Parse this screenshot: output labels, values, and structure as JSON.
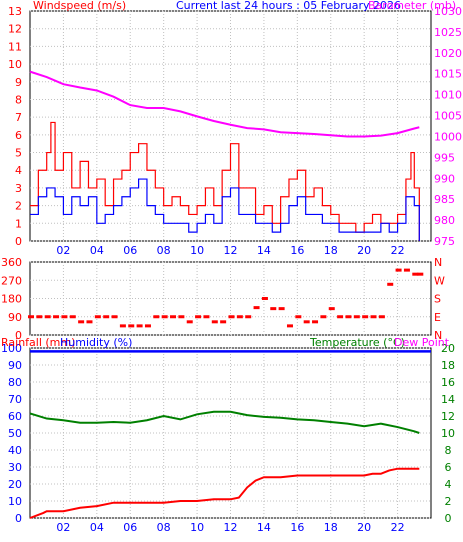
{
  "header": {
    "left_title": "Windspeed (m/s)",
    "center_title": "Current last 24 hours : 05 February 2026",
    "right_title": "Barometer (mb)"
  },
  "colors": {
    "wind_speed": "#ff0000",
    "wind_avg": "#0000ff",
    "barometer": "#ff00ff",
    "direction": "#ff0000",
    "rainfall": "#ff0000",
    "humidity": "#0000ff",
    "temperature": "#008000",
    "axis_left": "#ff0000",
    "axis_right_baro": "#ff00ff",
    "axis_left_bottom": "#0000ff",
    "axis_right_temp": "#008000",
    "grid": "#c0c0c0",
    "tick_text_x": "#0000ff"
  },
  "chart_data": [
    {
      "type": "line",
      "panel": "wind_barometer",
      "title": "Current last 24 hours : 05 February 2026",
      "ylabel": "Windspeed (m/s)",
      "y2label": "Barometer (mb)",
      "ylim": [
        0,
        13
      ],
      "y2lim": [
        975,
        1030
      ],
      "yticks": [
        0,
        1,
        2,
        3,
        4,
        5,
        6,
        7,
        8,
        9,
        10,
        11,
        12,
        13
      ],
      "y2ticks": [
        975,
        980,
        985,
        990,
        995,
        1000,
        1005,
        1010,
        1015,
        1020,
        1025,
        1030
      ],
      "xlim": [
        0,
        24
      ],
      "xticks": [
        "02",
        "04",
        "06",
        "08",
        "10",
        "12",
        "14",
        "16",
        "18",
        "20",
        "22"
      ],
      "xtick_pos": [
        2,
        4,
        6,
        8,
        10,
        12,
        14,
        16,
        18,
        20,
        22
      ],
      "grid": true,
      "series": [
        {
          "name": "Gust",
          "axis": "left",
          "x": [
            0,
            0.5,
            1,
            1.25,
            1.5,
            2,
            2.5,
            3,
            3.5,
            4,
            4.5,
            5,
            5.5,
            6,
            6.5,
            7,
            7.5,
            8,
            8.5,
            9,
            9.5,
            10,
            10.5,
            11,
            11.5,
            12,
            12.5,
            13,
            13.5,
            14,
            14.5,
            15,
            15.5,
            16,
            16.5,
            17,
            17.5,
            18,
            18.5,
            19,
            19.5,
            20,
            20.5,
            21,
            21.5,
            22,
            22.5,
            22.8,
            23,
            23.3
          ],
          "values": [
            2,
            4,
            5,
            6.7,
            4,
            5,
            3,
            4.5,
            3,
            3.5,
            2,
            3.5,
            4,
            5,
            5.5,
            4,
            3,
            2,
            2.5,
            2,
            1.5,
            2,
            3,
            2,
            4,
            5.5,
            3,
            3,
            1.5,
            2,
            1,
            2.5,
            3.5,
            4,
            2.5,
            3,
            2,
            1.5,
            1,
            1,
            0.5,
            1,
            1.5,
            1,
            1,
            1.5,
            3.5,
            5,
            3,
            0
          ]
        },
        {
          "name": "Average",
          "axis": "left",
          "x": [
            0,
            0.5,
            1,
            1.5,
            2,
            2.5,
            3,
            3.5,
            4,
            4.5,
            5,
            5.5,
            6,
            6.5,
            7,
            7.5,
            8,
            8.5,
            9,
            9.5,
            10,
            10.5,
            11,
            11.5,
            12,
            12.5,
            13,
            13.5,
            14,
            14.5,
            15,
            15.5,
            16,
            16.5,
            17,
            17.5,
            18,
            18.5,
            19,
            19.5,
            20,
            20.5,
            21,
            21.5,
            22,
            22.5,
            23,
            23.3
          ],
          "values": [
            1.5,
            2.5,
            3,
            2.5,
            1.5,
            2.5,
            2,
            2.5,
            1,
            1.5,
            2,
            2.5,
            3,
            3.5,
            2,
            1.5,
            1,
            1,
            1,
            0.5,
            1,
            1.5,
            1,
            2.5,
            3,
            1.5,
            1.5,
            1,
            1,
            0.5,
            1,
            2,
            2.5,
            1.5,
            1.5,
            1,
            1,
            0.5,
            0.5,
            0.5,
            0.5,
            0.5,
            1,
            0.5,
            1,
            2.5,
            2,
            0
          ]
        },
        {
          "name": "Barometer",
          "axis": "right",
          "x": [
            0,
            1,
            2,
            3,
            4,
            5,
            6,
            7,
            8,
            9,
            10,
            11,
            12,
            13,
            14,
            15,
            16,
            17,
            18,
            19,
            20,
            21,
            22,
            23,
            23.3
          ],
          "values": [
            1015.5,
            1014.2,
            1012.5,
            1011.7,
            1011.0,
            1009.5,
            1007.5,
            1006.8,
            1006.8,
            1006.0,
            1004.8,
            1003.7,
            1002.8,
            1002.0,
            1001.7,
            1001.0,
            1000.8,
            1000.6,
            1000.3,
            1000.0,
            1000.0,
            1000.2,
            1000.8,
            1001.9,
            1002.2
          ]
        }
      ]
    },
    {
      "type": "scatter",
      "panel": "wind_direction",
      "ylim": [
        0,
        360
      ],
      "yticks": [
        0,
        90,
        180,
        270,
        360
      ],
      "y2ticks": [
        "N",
        "E",
        "S",
        "W",
        "N"
      ],
      "xlim": [
        0,
        24
      ],
      "grid": true,
      "series": [
        {
          "name": "Direction",
          "x": [
            0,
            0.5,
            1,
            1.5,
            2,
            2.5,
            3,
            3.5,
            4,
            4.5,
            5,
            5.5,
            6,
            6.5,
            7,
            7.5,
            8,
            8.5,
            9,
            9.5,
            10,
            10.5,
            11,
            11.5,
            12,
            12.5,
            13,
            13.5,
            14,
            14.5,
            15,
            15.5,
            16,
            16.5,
            17,
            17.5,
            18,
            18.5,
            19,
            19.5,
            20,
            20.5,
            21,
            21.5,
            22,
            22.5,
            23,
            23.3
          ],
          "values": [
            90,
            90,
            90,
            90,
            90,
            90,
            65,
            65,
            90,
            90,
            90,
            45,
            45,
            45,
            45,
            90,
            90,
            90,
            90,
            65,
            90,
            90,
            65,
            65,
            90,
            90,
            90,
            135,
            180,
            130,
            130,
            45,
            90,
            65,
            65,
            90,
            130,
            90,
            90,
            90,
            90,
            90,
            90,
            250,
            320,
            320,
            300,
            300
          ]
        }
      ]
    },
    {
      "type": "line",
      "panel": "rain_humidity_temperature",
      "labels": [
        "Rainfall (mm)",
        "Humidity (%)",
        "Temperature (°C)",
        "Dew Point"
      ],
      "ylim": [
        0,
        100
      ],
      "yticks": [
        0,
        10,
        20,
        30,
        40,
        50,
        60,
        70,
        80,
        90,
        100
      ],
      "y2lim": [
        0,
        20
      ],
      "y2ticks": [
        0,
        2,
        4,
        6,
        8,
        10,
        12,
        14,
        16,
        18,
        20
      ],
      "xlim": [
        0,
        24
      ],
      "xticks": [
        "02",
        "04",
        "06",
        "08",
        "10",
        "12",
        "14",
        "16",
        "18",
        "20",
        "22"
      ],
      "xtick_pos": [
        2,
        4,
        6,
        8,
        10,
        12,
        14,
        16,
        18,
        20,
        22
      ],
      "grid": true,
      "series": [
        {
          "name": "Humidity",
          "axis": "left",
          "x": [
            0,
            24
          ],
          "values": [
            98,
            98
          ]
        },
        {
          "name": "Temperature",
          "axis": "right",
          "x": [
            0,
            1,
            2,
            3,
            4,
            5,
            6,
            7,
            8,
            9,
            10,
            11,
            12,
            13,
            14,
            15,
            16,
            17,
            18,
            19,
            20,
            21,
            22,
            23,
            23.3
          ],
          "values": [
            12.3,
            11.7,
            11.5,
            11.2,
            11.2,
            11.3,
            11.2,
            11.5,
            12.0,
            11.6,
            12.2,
            12.5,
            12.5,
            12.1,
            11.9,
            11.8,
            11.6,
            11.5,
            11.3,
            11.1,
            10.8,
            11.1,
            10.7,
            10.2,
            10.0
          ]
        },
        {
          "name": "Rainfall",
          "axis": "left",
          "x": [
            0,
            0.8,
            1,
            2,
            3,
            4,
            5,
            6,
            7,
            8,
            9,
            10,
            11,
            12,
            12.5,
            13,
            13.5,
            14,
            15,
            16,
            17,
            18,
            19,
            20,
            20.5,
            21,
            21.5,
            22,
            22.5,
            23,
            23.3
          ],
          "values": [
            0,
            3,
            4,
            4,
            6,
            7,
            9,
            9,
            9,
            9,
            10,
            10,
            11,
            11,
            12,
            18,
            22,
            24,
            24,
            25,
            25,
            25,
            25,
            25,
            26,
            26,
            28,
            29,
            29,
            29,
            29
          ]
        }
      ]
    }
  ]
}
